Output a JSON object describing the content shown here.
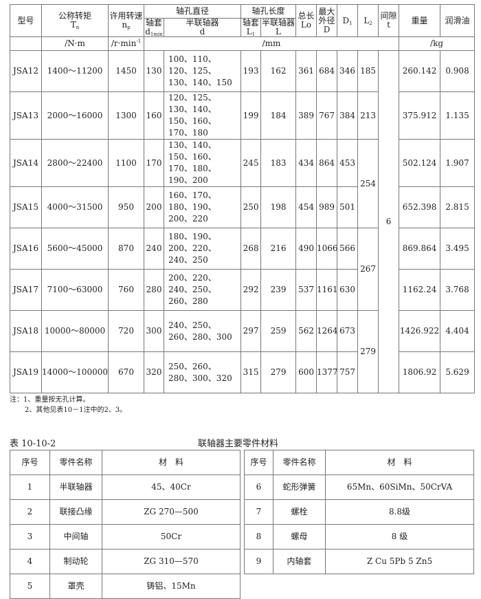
{
  "table1": {
    "headers": {
      "model": "型号",
      "torque": "公称转矩",
      "torque_sym": "T",
      "torque_sub": "n",
      "speed": "许用转速",
      "speed_sym": "n",
      "speed_sub": "p",
      "bore_dia": "轴孔直径",
      "sleeve": "轴套",
      "sleeve_d": "d",
      "sleeve_d_sub": "1min",
      "half": "半联轴器",
      "half_d": "d",
      "bore_len": "轴孔长度",
      "sleeve2": "轴套",
      "L1": "L",
      "L1_sub": "1",
      "half2": "半联轴器",
      "L": "L",
      "total": "总长",
      "Lo": "Lo",
      "maxod": "最大外径",
      "D": "D",
      "D1": "D",
      "D1_sub": "1",
      "L2": "L",
      "L2_sub": "2",
      "gap": "间隙",
      "t": "t",
      "weight": "重量",
      "oil": "润滑油"
    },
    "units": {
      "torque": "/N·m",
      "speed": "/r·min",
      "speed_exp": "-1",
      "mm": "/mm",
      "kg": "/kg"
    },
    "rows": [
      {
        "model": "JSA12",
        "torque": "1400～11200",
        "speed": "1450",
        "d1": "130",
        "d": "100、110、120、125、130、140、150",
        "L1": "193",
        "L": "162",
        "Lo": "361",
        "D": "684",
        "D1": "346",
        "L2": "185",
        "weight": "260.142",
        "oil": "0.908"
      },
      {
        "model": "JSA13",
        "torque": "2000～16000",
        "speed": "1300",
        "d1": "160",
        "d": "120、125、130、140、150、160、170、180",
        "L1": "199",
        "L": "184",
        "Lo": "389",
        "D": "767",
        "D1": "384",
        "L2": "213",
        "weight": "375.912",
        "oil": "1.135"
      },
      {
        "model": "JSA14",
        "torque": "2800～22400",
        "speed": "1100",
        "d1": "170",
        "d": "130、140、150、160、170、180、190、200",
        "L1": "245",
        "L": "183",
        "Lo": "434",
        "D": "864",
        "D1": "453",
        "L2": "254",
        "weight": "502.124",
        "oil": "1.907"
      },
      {
        "model": "JSA15",
        "torque": "4000～31500",
        "speed": "950",
        "d1": "200",
        "d": "160、170、180、190、200、220",
        "L1": "250",
        "L": "198",
        "Lo": "454",
        "D": "989",
        "D1": "501",
        "weight": "652.398",
        "oil": "2.815"
      },
      {
        "model": "JSA16",
        "torque": "5600～45000",
        "speed": "870",
        "d1": "240",
        "d": "180、190、200、220、240、250",
        "L1": "268",
        "L": "216",
        "Lo": "490",
        "D": "1066",
        "D1": "566",
        "L2": "267",
        "weight": "869.864",
        "oil": "3.495"
      },
      {
        "model": "JSA17",
        "torque": "7100～63000",
        "speed": "760",
        "d1": "280",
        "d": "200、220、240、250、260、280",
        "L1": "292",
        "L": "239",
        "Lo": "537",
        "D": "1161",
        "D1": "630",
        "weight": "1162.24",
        "oil": "3.768"
      },
      {
        "model": "JSA18",
        "torque": "10000～80000",
        "speed": "720",
        "d1": "300",
        "d": "240、250、260、280、300",
        "L1": "297",
        "L": "259",
        "Lo": "562",
        "D": "1264",
        "D1": "673",
        "L2": "279",
        "weight": "1426.922",
        "oil": "4.404"
      },
      {
        "model": "JSA19",
        "torque": "14000～100000",
        "speed": "670",
        "d1": "320",
        "d": "250、260、280、300、320",
        "L1": "315",
        "L": "279",
        "Lo": "600",
        "D": "1377",
        "D1": "757",
        "weight": "1806.92",
        "oil": "5.629"
      }
    ],
    "t": "6"
  },
  "notes": [
    "注：1、重量按无孔计算。",
    "2、其他见表10－1注中的2、3。"
  ],
  "table2": {
    "label": "表 10-10-2",
    "title": "联轴器主要零件材料",
    "headers": [
      "序号",
      "零件名称",
      "材　料"
    ],
    "left": [
      [
        "1",
        "半联轴器",
        "45、40Cr"
      ],
      [
        "2",
        "联接凸缘",
        "ZG 270—500"
      ],
      [
        "3",
        "中间轴",
        "50Cr"
      ],
      [
        "4",
        "制动轮",
        "ZG 310—570"
      ],
      [
        "5",
        "罩壳",
        "铸铝、15Mn"
      ]
    ],
    "right": [
      [
        "6",
        "蛇形弹簧",
        "65Mn、60SiMn、50CrVA"
      ],
      [
        "7",
        "螺栓",
        "8.8级"
      ],
      [
        "8",
        "螺母",
        "8 级"
      ],
      [
        "9",
        "内轴套",
        "Z Cu 5Pb 5 Zn5"
      ]
    ]
  }
}
